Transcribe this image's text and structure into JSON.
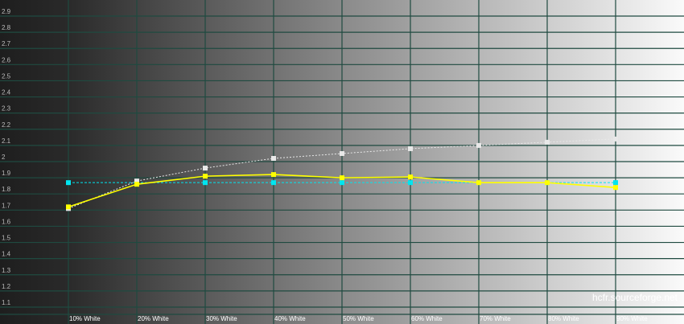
{
  "chart_data": {
    "type": "line",
    "title": "",
    "xlabel": "",
    "ylabel": "",
    "categories": [
      "10% White",
      "20% White",
      "30% White",
      "40% White",
      "50% White",
      "60% White",
      "70% White",
      "80% White",
      "90% White"
    ],
    "yticks": [
      "2.9",
      "2.8",
      "2.7",
      "2.6",
      "2.5",
      "2.4",
      "2.3",
      "2.2",
      "2.1",
      "2",
      "1.9",
      "1.8",
      "1.7",
      "1.6",
      "1.5",
      "1.4",
      "1.3",
      "1.2",
      "1.1"
    ],
    "ylim": [
      1.05,
      2.95
    ],
    "grid": true,
    "series": [
      {
        "color": "#ffff00",
        "style": "solid",
        "values": [
          1.69,
          1.83,
          1.88,
          1.89,
          1.87,
          1.875,
          1.84,
          1.84,
          1.81
        ]
      },
      {
        "color": "#e8e8e8",
        "style": "dotted",
        "values": [
          1.68,
          1.85,
          1.93,
          1.99,
          2.02,
          2.05,
          2.07,
          2.09,
          2.11
        ]
      },
      {
        "color": "#00e5f0",
        "style": "dashed",
        "values": [
          1.84,
          1.84,
          1.84,
          1.84,
          1.84,
          1.84,
          1.84,
          1.84,
          1.84
        ]
      }
    ],
    "watermark": "hcfr.sourceforge.net"
  }
}
